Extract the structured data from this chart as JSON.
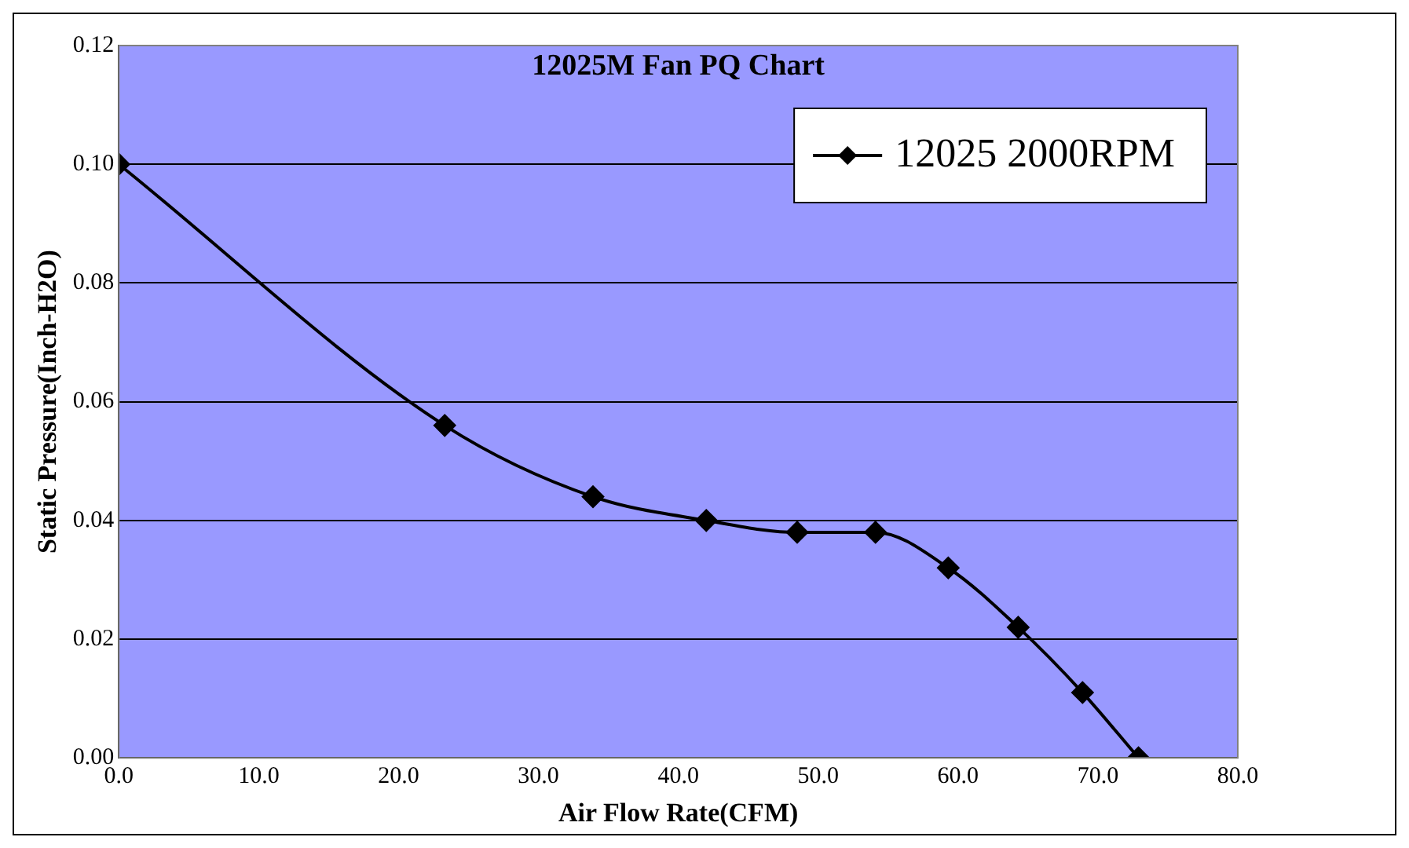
{
  "chart_data": {
    "type": "line",
    "title": "12025M Fan PQ Chart",
    "xlabel": "Air Flow Rate(CFM)",
    "ylabel": "Static Pressure(Inch-H2O)",
    "x": [
      0,
      23.3,
      33.9,
      42.0,
      48.5,
      54.1,
      59.3,
      64.3,
      68.9,
      72.9
    ],
    "series": [
      {
        "name": "12025 2000RPM",
        "color": "#000000",
        "values": [
          0.1,
          0.056,
          0.044,
          0.04,
          0.038,
          0.038,
          0.032,
          0.022,
          0.011,
          0.0
        ]
      }
    ],
    "xlim": [
      0,
      80
    ],
    "xticks": [
      {
        "value": 0,
        "label": "0.0"
      },
      {
        "value": 10,
        "label": "10.0"
      },
      {
        "value": 20,
        "label": "20.0"
      },
      {
        "value": 30,
        "label": "30.0"
      },
      {
        "value": 40,
        "label": "40.0"
      },
      {
        "value": 50,
        "label": "50.0"
      },
      {
        "value": 60,
        "label": "60.0"
      },
      {
        "value": 70,
        "label": "70.0"
      },
      {
        "value": 80,
        "label": "80.0"
      }
    ],
    "ylim": [
      0,
      0.12
    ],
    "yticks": [
      {
        "value": 0,
        "label": "0.00"
      },
      {
        "value": 0.02,
        "label": "0.02"
      },
      {
        "value": 0.04,
        "label": "0.04"
      },
      {
        "value": 0.06,
        "label": "0.06"
      },
      {
        "value": 0.08,
        "label": "0.08"
      },
      {
        "value": 0.1,
        "label": "0.10"
      },
      {
        "value": 0.12,
        "label": "0.12"
      }
    ],
    "grid": "y",
    "legend": "top right",
    "marker": "diamond",
    "line_style": "solid"
  }
}
